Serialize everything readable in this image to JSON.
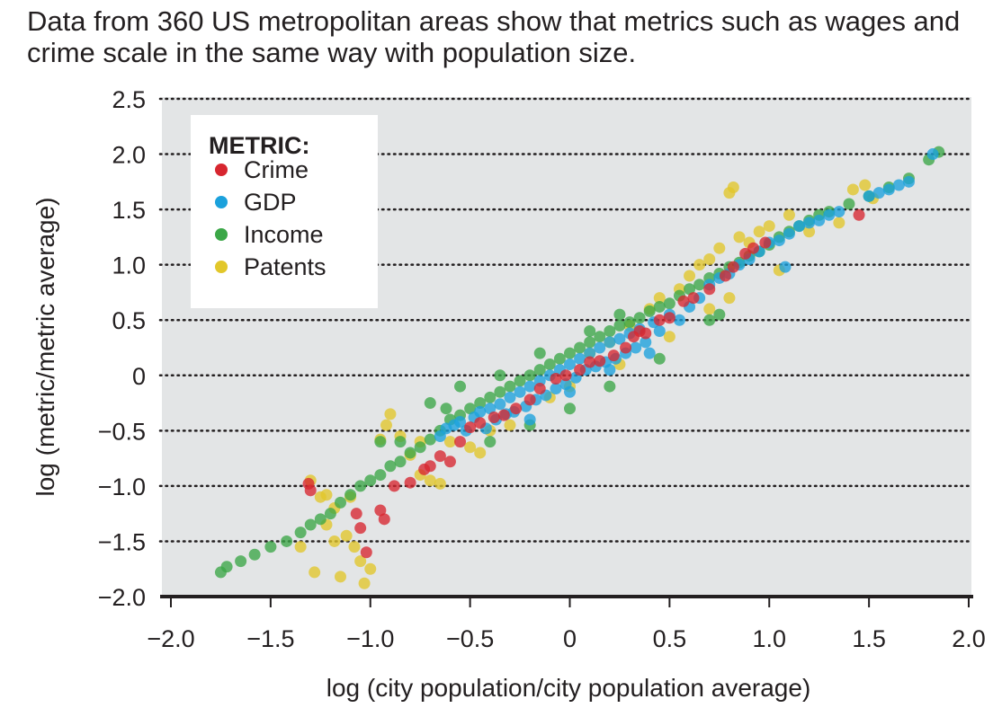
{
  "caption": "Data from 360 US metropolitan areas show that metrics such as wages and crime scale in the same way with population size.",
  "chart_data": {
    "type": "scatter",
    "title": "",
    "xlabel": "log (city population/city population average)",
    "ylabel": "log (metric/metric average)",
    "xlim": [
      -2.0,
      2.0
    ],
    "ylim": [
      -2.0,
      2.5
    ],
    "x_ticks": [
      -2.0,
      -1.5,
      -1.0,
      -0.5,
      0,
      0.5,
      1.0,
      1.5,
      2.0
    ],
    "x_tick_labels": [
      "−2.0",
      "−1.5",
      "−1.0",
      "−0.5",
      "0",
      "0.5",
      "1.0",
      "1.5",
      "2.0"
    ],
    "y_ticks": [
      -2.0,
      -1.5,
      -1.0,
      -0.5,
      0,
      0.5,
      1.0,
      1.5,
      2.0,
      2.5
    ],
    "y_tick_labels": [
      "−2.0",
      "−1.5",
      "−1.0",
      "−0.5",
      "0",
      "0.5",
      "1.0",
      "1.5",
      "2.0",
      "2.5"
    ],
    "grid": "horizontal dotted",
    "legend": {
      "title": "METRIC:",
      "position": "top-left",
      "entries": [
        "Crime",
        "GDP",
        "Income",
        "Patents"
      ]
    },
    "series": [
      {
        "name": "Crime",
        "color": "#d7262f",
        "points": [
          [
            -1.31,
            -0.98
          ],
          [
            -1.3,
            -1.04
          ],
          [
            -1.07,
            -1.25
          ],
          [
            -1.05,
            -1.38
          ],
          [
            -1.02,
            -1.6
          ],
          [
            -0.95,
            -1.22
          ],
          [
            -0.93,
            -1.3
          ],
          [
            -0.88,
            -1.0
          ],
          [
            -0.8,
            -0.97
          ],
          [
            -0.73,
            -0.85
          ],
          [
            -0.7,
            -0.82
          ],
          [
            -0.65,
            -0.73
          ],
          [
            -0.6,
            -0.78
          ],
          [
            -0.55,
            -0.6
          ],
          [
            -0.5,
            -0.47
          ],
          [
            -0.45,
            -0.43
          ],
          [
            -0.38,
            -0.38
          ],
          [
            -0.33,
            -0.36
          ],
          [
            -0.27,
            -0.3
          ],
          [
            -0.2,
            -0.22
          ],
          [
            -0.15,
            -0.12
          ],
          [
            -0.07,
            -0.03
          ],
          [
            -0.02,
            0.0
          ],
          [
            0.05,
            0.05
          ],
          [
            0.1,
            0.12
          ],
          [
            0.15,
            0.13
          ],
          [
            0.22,
            0.18
          ],
          [
            0.28,
            0.25
          ],
          [
            0.32,
            0.35
          ],
          [
            0.38,
            0.38
          ],
          [
            0.45,
            0.5
          ],
          [
            0.5,
            0.52
          ],
          [
            0.57,
            0.67
          ],
          [
            0.62,
            0.7
          ],
          [
            0.7,
            0.78
          ],
          [
            0.78,
            0.9
          ],
          [
            0.82,
            0.98
          ],
          [
            0.88,
            1.1
          ],
          [
            0.92,
            1.15
          ],
          [
            0.98,
            1.2
          ],
          [
            1.45,
            1.45
          ],
          [
            0.35,
            0.4
          ]
        ]
      },
      {
        "name": "GDP",
        "color": "#1ba1dc",
        "points": [
          [
            -0.65,
            -0.55
          ],
          [
            -0.62,
            -0.48
          ],
          [
            -0.58,
            -0.45
          ],
          [
            -0.55,
            -0.42
          ],
          [
            -0.52,
            -0.5
          ],
          [
            -0.48,
            -0.38
          ],
          [
            -0.45,
            -0.33
          ],
          [
            -0.42,
            -0.48
          ],
          [
            -0.4,
            -0.3
          ],
          [
            -0.37,
            -0.4
          ],
          [
            -0.35,
            -0.26
          ],
          [
            -0.32,
            -0.35
          ],
          [
            -0.3,
            -0.2
          ],
          [
            -0.28,
            -0.33
          ],
          [
            -0.25,
            -0.15
          ],
          [
            -0.22,
            -0.28
          ],
          [
            -0.2,
            -0.1
          ],
          [
            -0.17,
            -0.22
          ],
          [
            -0.15,
            -0.05
          ],
          [
            -0.12,
            -0.18
          ],
          [
            -0.1,
            0.0
          ],
          [
            -0.07,
            -0.12
          ],
          [
            -0.05,
            0.05
          ],
          [
            -0.02,
            -0.08
          ],
          [
            0.0,
            0.1
          ],
          [
            0.03,
            -0.02
          ],
          [
            0.05,
            0.15
          ],
          [
            0.08,
            0.05
          ],
          [
            0.1,
            0.2
          ],
          [
            0.13,
            0.08
          ],
          [
            0.15,
            0.25
          ],
          [
            0.18,
            0.12
          ],
          [
            0.2,
            0.3
          ],
          [
            0.23,
            0.15
          ],
          [
            0.25,
            0.33
          ],
          [
            0.28,
            0.2
          ],
          [
            0.3,
            0.38
          ],
          [
            0.33,
            0.25
          ],
          [
            0.35,
            0.42
          ],
          [
            0.38,
            0.3
          ],
          [
            0.42,
            0.48
          ],
          [
            0.45,
            0.4
          ],
          [
            0.5,
            0.55
          ],
          [
            0.55,
            0.5
          ],
          [
            0.6,
            0.62
          ],
          [
            0.65,
            0.7
          ],
          [
            0.7,
            0.82
          ],
          [
            0.75,
            0.88
          ],
          [
            0.8,
            0.92
          ],
          [
            0.85,
            1.0
          ],
          [
            0.9,
            1.05
          ],
          [
            0.95,
            1.12
          ],
          [
            1.0,
            1.2
          ],
          [
            1.05,
            1.22
          ],
          [
            1.1,
            1.28
          ],
          [
            1.15,
            1.35
          ],
          [
            1.2,
            1.38
          ],
          [
            1.25,
            1.4
          ],
          [
            1.3,
            1.45
          ],
          [
            1.35,
            1.48
          ],
          [
            1.5,
            1.62
          ],
          [
            1.55,
            1.65
          ],
          [
            1.6,
            1.68
          ],
          [
            1.65,
            1.72
          ],
          [
            1.7,
            1.75
          ],
          [
            1.82,
            2.0
          ],
          [
            -0.2,
            -0.4
          ],
          [
            0.0,
            -0.15
          ],
          [
            0.2,
            0.05
          ],
          [
            0.4,
            0.2
          ],
          [
            1.08,
            0.98
          ]
        ]
      },
      {
        "name": "Income",
        "color": "#3ba747",
        "points": [
          [
            -1.75,
            -1.78
          ],
          [
            -1.72,
            -1.73
          ],
          [
            -1.65,
            -1.68
          ],
          [
            -1.58,
            -1.62
          ],
          [
            -1.5,
            -1.55
          ],
          [
            -1.42,
            -1.5
          ],
          [
            -1.35,
            -1.42
          ],
          [
            -1.3,
            -1.35
          ],
          [
            -1.25,
            -1.3
          ],
          [
            -1.2,
            -1.25
          ],
          [
            -1.15,
            -1.15
          ],
          [
            -1.1,
            -1.08
          ],
          [
            -1.05,
            -1.0
          ],
          [
            -1.0,
            -0.95
          ],
          [
            -0.95,
            -0.9
          ],
          [
            -0.9,
            -0.82
          ],
          [
            -0.85,
            -0.78
          ],
          [
            -0.8,
            -0.7
          ],
          [
            -0.75,
            -0.65
          ],
          [
            -0.7,
            -0.58
          ],
          [
            -0.65,
            -0.5
          ],
          [
            -0.6,
            -0.4
          ],
          [
            -0.55,
            -0.36
          ],
          [
            -0.5,
            -0.3
          ],
          [
            -0.45,
            -0.25
          ],
          [
            -0.4,
            -0.2
          ],
          [
            -0.35,
            -0.15
          ],
          [
            -0.3,
            -0.1
          ],
          [
            -0.25,
            -0.05
          ],
          [
            -0.2,
            0.0
          ],
          [
            -0.15,
            0.05
          ],
          [
            -0.1,
            0.1
          ],
          [
            -0.05,
            0.15
          ],
          [
            0.0,
            0.2
          ],
          [
            0.05,
            0.25
          ],
          [
            0.1,
            0.3
          ],
          [
            0.15,
            0.35
          ],
          [
            0.2,
            0.4
          ],
          [
            0.25,
            0.45
          ],
          [
            0.3,
            0.48
          ],
          [
            0.35,
            0.52
          ],
          [
            0.4,
            0.58
          ],
          [
            0.45,
            0.62
          ],
          [
            0.5,
            0.65
          ],
          [
            0.55,
            0.72
          ],
          [
            0.6,
            0.78
          ],
          [
            0.65,
            0.82
          ],
          [
            0.7,
            0.88
          ],
          [
            0.75,
            0.92
          ],
          [
            0.8,
            0.98
          ],
          [
            0.85,
            1.02
          ],
          [
            0.9,
            1.08
          ],
          [
            0.95,
            1.12
          ],
          [
            1.0,
            1.18
          ],
          [
            1.05,
            1.25
          ],
          [
            1.1,
            1.3
          ],
          [
            1.15,
            1.35
          ],
          [
            1.2,
            1.4
          ],
          [
            1.25,
            1.45
          ],
          [
            1.3,
            1.48
          ],
          [
            1.4,
            1.55
          ],
          [
            1.5,
            1.62
          ],
          [
            1.6,
            1.7
          ],
          [
            1.7,
            1.78
          ],
          [
            1.8,
            1.95
          ],
          [
            1.85,
            2.02
          ],
          [
            -0.7,
            -0.25
          ],
          [
            -0.62,
            -0.3
          ],
          [
            -0.95,
            -0.6
          ],
          [
            -0.85,
            -0.6
          ],
          [
            -0.4,
            -0.6
          ],
          [
            -0.2,
            -0.45
          ],
          [
            0.0,
            -0.3
          ],
          [
            0.2,
            -0.1
          ],
          [
            0.45,
            0.15
          ],
          [
            0.7,
            0.5
          ],
          [
            0.75,
            0.55
          ],
          [
            -0.55,
            -0.1
          ],
          [
            -0.35,
            0.0
          ],
          [
            -0.15,
            0.2
          ],
          [
            0.1,
            0.4
          ],
          [
            0.25,
            0.55
          ]
        ]
      },
      {
        "name": "Patents",
        "color": "#e2c72a",
        "points": [
          [
            -1.3,
            -0.95
          ],
          [
            -1.25,
            -1.1
          ],
          [
            -1.22,
            -1.35
          ],
          [
            -1.18,
            -1.5
          ],
          [
            -1.12,
            -1.45
          ],
          [
            -1.08,
            -1.55
          ],
          [
            -1.05,
            -1.68
          ],
          [
            -1.03,
            -1.88
          ],
          [
            -1.0,
            -1.75
          ],
          [
            -1.15,
            -1.82
          ],
          [
            -1.28,
            -1.78
          ],
          [
            -1.35,
            -1.55
          ],
          [
            -1.22,
            -1.08
          ],
          [
            -1.18,
            -1.2
          ],
          [
            -1.1,
            -1.1
          ],
          [
            -0.95,
            -0.58
          ],
          [
            -0.9,
            -0.35
          ],
          [
            -0.92,
            -0.45
          ],
          [
            -0.85,
            -0.55
          ],
          [
            -0.8,
            -0.72
          ],
          [
            -0.75,
            -0.9
          ],
          [
            -0.7,
            -0.95
          ],
          [
            -0.65,
            -0.98
          ],
          [
            -0.6,
            -0.6
          ],
          [
            -0.5,
            -0.65
          ],
          [
            -0.45,
            -0.7
          ],
          [
            -0.4,
            -0.5
          ],
          [
            -0.1,
            -0.2
          ],
          [
            0.0,
            -0.1
          ],
          [
            0.1,
            0.2
          ],
          [
            0.2,
            0.3
          ],
          [
            0.3,
            0.45
          ],
          [
            0.4,
            0.6
          ],
          [
            0.45,
            0.7
          ],
          [
            0.55,
            0.78
          ],
          [
            0.6,
            0.9
          ],
          [
            0.65,
            1.0
          ],
          [
            0.7,
            1.05
          ],
          [
            0.75,
            1.15
          ],
          [
            0.8,
            1.65
          ],
          [
            0.82,
            1.7
          ],
          [
            0.85,
            1.25
          ],
          [
            0.9,
            1.2
          ],
          [
            0.95,
            1.3
          ],
          [
            1.0,
            1.35
          ],
          [
            1.1,
            1.45
          ],
          [
            1.2,
            1.3
          ],
          [
            1.35,
            1.38
          ],
          [
            1.42,
            1.68
          ],
          [
            1.48,
            1.72
          ],
          [
            1.52,
            1.6
          ],
          [
            0.8,
            0.7
          ],
          [
            0.7,
            0.6
          ],
          [
            -0.3,
            -0.45
          ],
          [
            0.25,
            0.1
          ],
          [
            0.5,
            0.35
          ],
          [
            1.05,
            0.95
          ],
          [
            -0.75,
            -0.6
          ]
        ]
      }
    ]
  }
}
